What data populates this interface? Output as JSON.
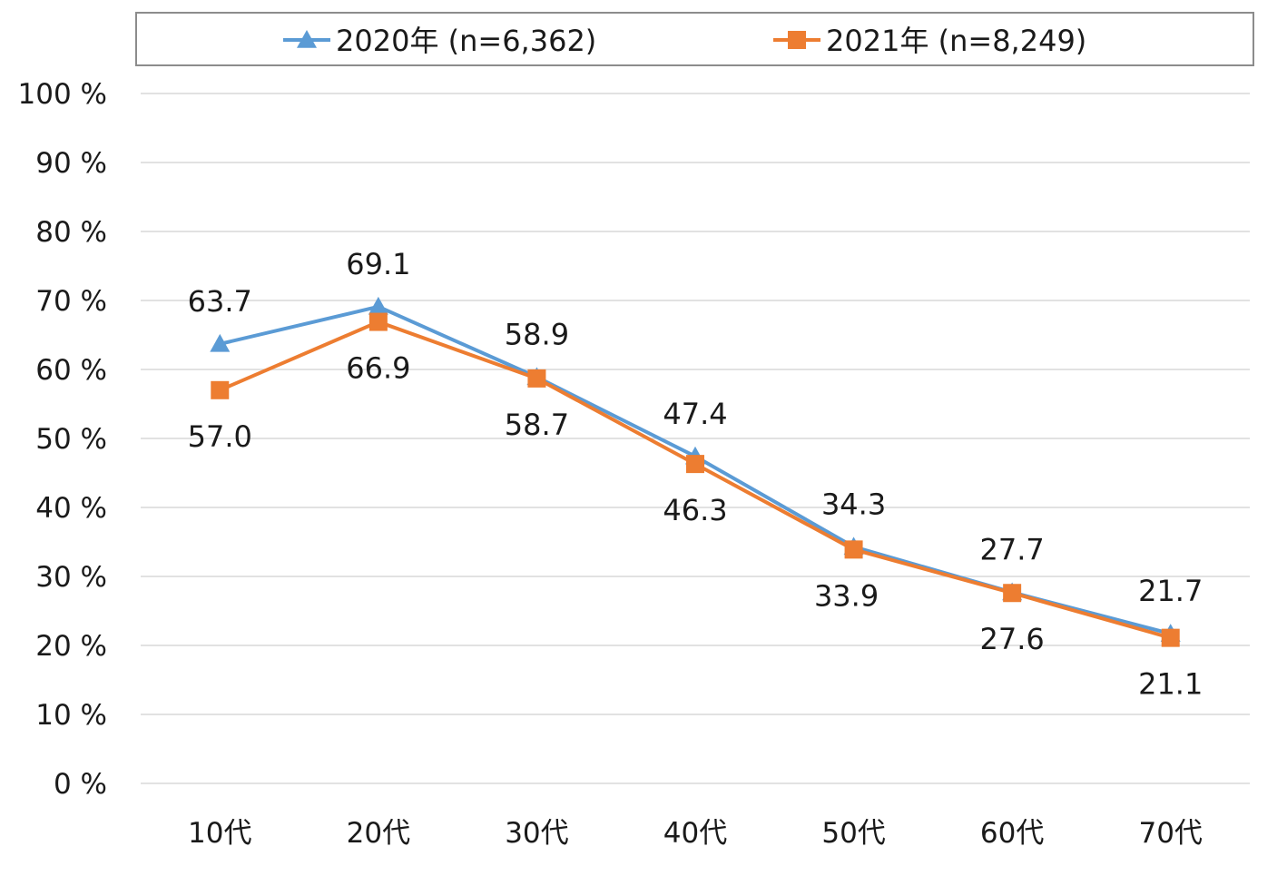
{
  "chart_data": {
    "type": "line",
    "categories": [
      "10代",
      "20代",
      "30代",
      "40代",
      "50代",
      "60代",
      "70代"
    ],
    "series": [
      {
        "name": "2020年 (n=6,362)",
        "values": [
          63.7,
          69.1,
          58.9,
          47.4,
          34.3,
          27.7,
          21.7
        ],
        "color": "#5b9bd5",
        "marker": "triangle"
      },
      {
        "name": "2021年 (n=8,249)",
        "values": [
          57.0,
          66.9,
          58.7,
          46.3,
          33.9,
          27.6,
          21.1
        ],
        "color": "#ed7d31",
        "marker": "square"
      }
    ],
    "data_labels": [
      [
        "63.7",
        "69.1",
        "58.9",
        "47.4",
        "34.3",
        "27.7",
        "21.7"
      ],
      [
        "57.0",
        "66.9",
        "58.7",
        "46.3",
        "33.9",
        "27.6",
        "21.1"
      ]
    ],
    "ylim": [
      0,
      100
    ],
    "yticks": [
      0,
      10,
      20,
      30,
      40,
      50,
      60,
      70,
      80,
      90,
      100
    ],
    "ytick_labels": [
      "0 %",
      "10 %",
      "20 %",
      "30 %",
      "40 %",
      "50 %",
      "60 %",
      "70 %",
      "80 %",
      "90 %",
      "100 %"
    ],
    "grid": true,
    "legend_position": "top"
  }
}
